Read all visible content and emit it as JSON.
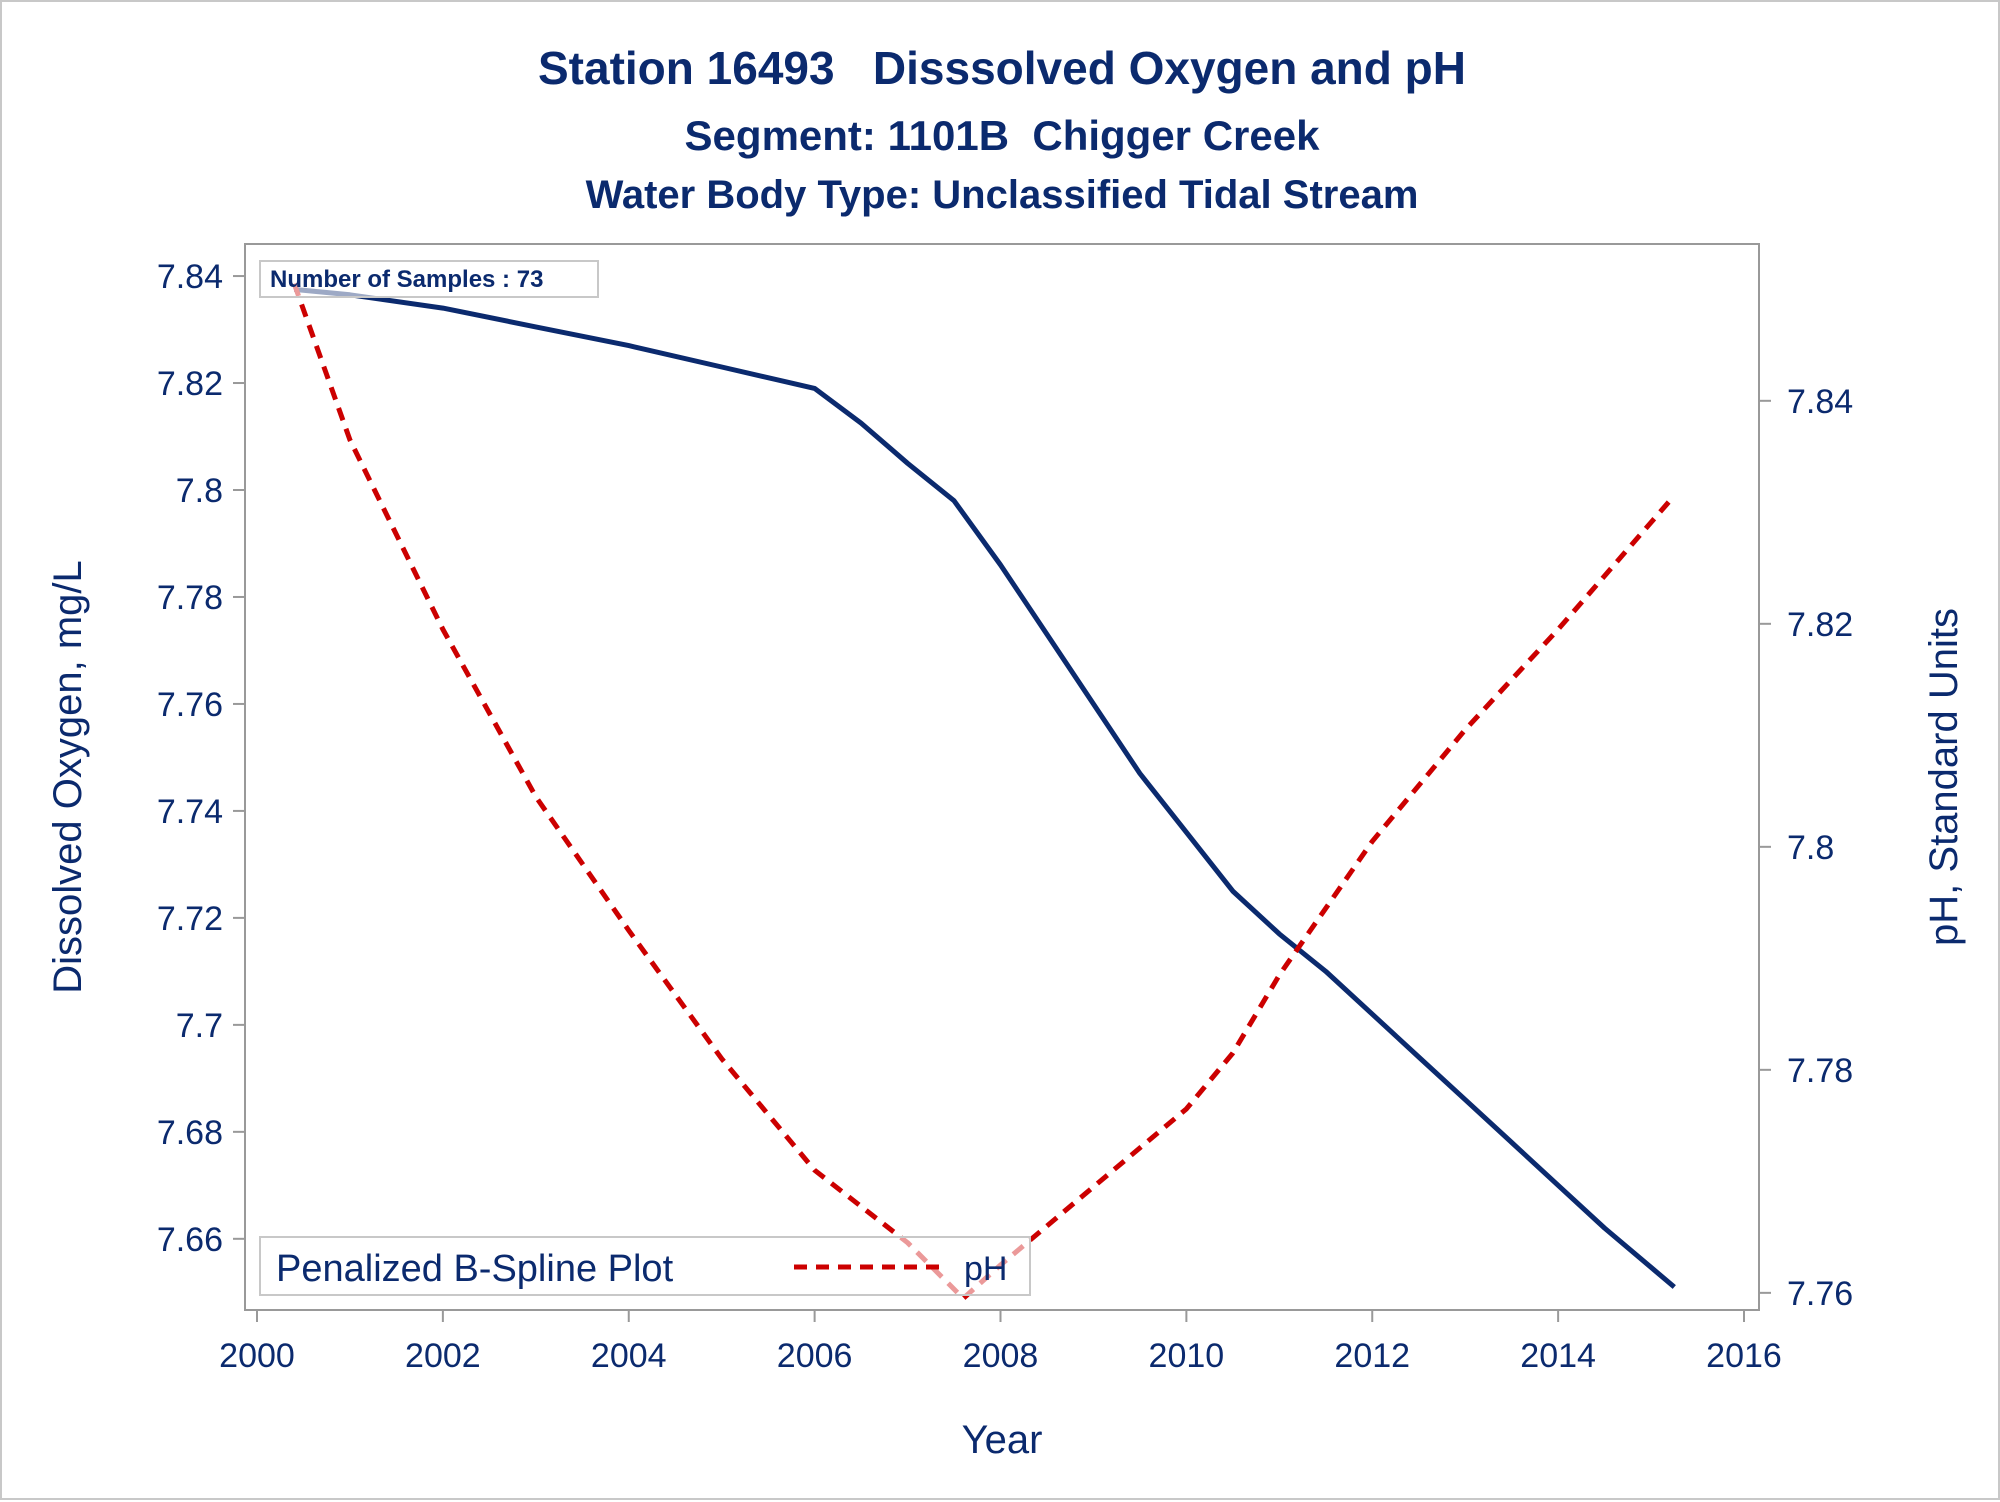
{
  "chart_data": {
    "type": "line",
    "title": "Station 16493   Disssolved Oxygen and pH",
    "subtitles": [
      "Segment: 1101B  Chigger Creek",
      "Water Body Type: Unclassified Tidal Stream"
    ],
    "xlabel": "Year",
    "ylabel_left": "Dissolved Oxygen, mg/L",
    "ylabel_right": "pH, Standard Units",
    "xlim": [
      2000,
      2016
    ],
    "ylim_left": [
      7.648,
      7.843
    ],
    "ylim_right": [
      7.759,
      7.852
    ],
    "x_ticks": [
      "2000",
      "2002",
      "2004",
      "2006",
      "2008",
      "2010",
      "2012",
      "2014",
      "2016"
    ],
    "y_ticks_left": [
      "7.66",
      "7.68",
      "7.7",
      "7.72",
      "7.74",
      "7.76",
      "7.78",
      "7.8",
      "7.82",
      "7.84"
    ],
    "y_ticks_right": [
      "7.76",
      "7.78",
      "7.8",
      "7.82",
      "7.84"
    ],
    "annotation": "Number of Samples : 73",
    "legend": {
      "title": "Penalized B-Spline Plot",
      "position": "bottom-left",
      "entries": [
        "pH"
      ]
    },
    "series": [
      {
        "name": "Dissolved Oxygen",
        "axis": "left",
        "color": "#0b2a6e",
        "style": "solid",
        "points": [
          [
            2000.4,
            7.8375
          ],
          [
            2001.0,
            7.8365
          ],
          [
            2002.0,
            7.834
          ],
          [
            2003.0,
            7.8305
          ],
          [
            2004.0,
            7.827
          ],
          [
            2005.0,
            7.823
          ],
          [
            2006.0,
            7.819
          ],
          [
            2006.5,
            7.8125
          ],
          [
            2007.0,
            7.805
          ],
          [
            2007.5,
            7.798
          ],
          [
            2008.0,
            7.786
          ],
          [
            2008.5,
            7.773
          ],
          [
            2009.0,
            7.76
          ],
          [
            2009.5,
            7.747
          ],
          [
            2010.0,
            7.736
          ],
          [
            2010.5,
            7.725
          ],
          [
            2011.0,
            7.717
          ],
          [
            2011.5,
            7.71
          ],
          [
            2012.0,
            7.702
          ],
          [
            2012.5,
            7.694
          ],
          [
            2013.0,
            7.686
          ],
          [
            2013.5,
            7.678
          ],
          [
            2014.0,
            7.67
          ],
          [
            2014.5,
            7.662
          ],
          [
            2015.25,
            7.651
          ]
        ]
      },
      {
        "name": "pH",
        "axis": "right",
        "color": "#cc0000",
        "style": "dashed",
        "points": [
          [
            2000.4,
            7.8505
          ],
          [
            2001.0,
            7.8365
          ],
          [
            2002.0,
            7.8195
          ],
          [
            2003.0,
            7.8045
          ],
          [
            2004.0,
            7.7925
          ],
          [
            2005.0,
            7.781
          ],
          [
            2006.0,
            7.771
          ],
          [
            2007.0,
            7.7645
          ],
          [
            2007.6,
            7.7595
          ],
          [
            2008.0,
            7.7625
          ],
          [
            2009.0,
            7.7695
          ],
          [
            2010.0,
            7.7765
          ],
          [
            2010.5,
            7.7815
          ],
          [
            2011.0,
            7.7885
          ],
          [
            2012.0,
            7.8005
          ],
          [
            2013.0,
            7.8105
          ],
          [
            2014.0,
            7.8195
          ],
          [
            2015.25,
            7.8315
          ]
        ]
      }
    ]
  }
}
